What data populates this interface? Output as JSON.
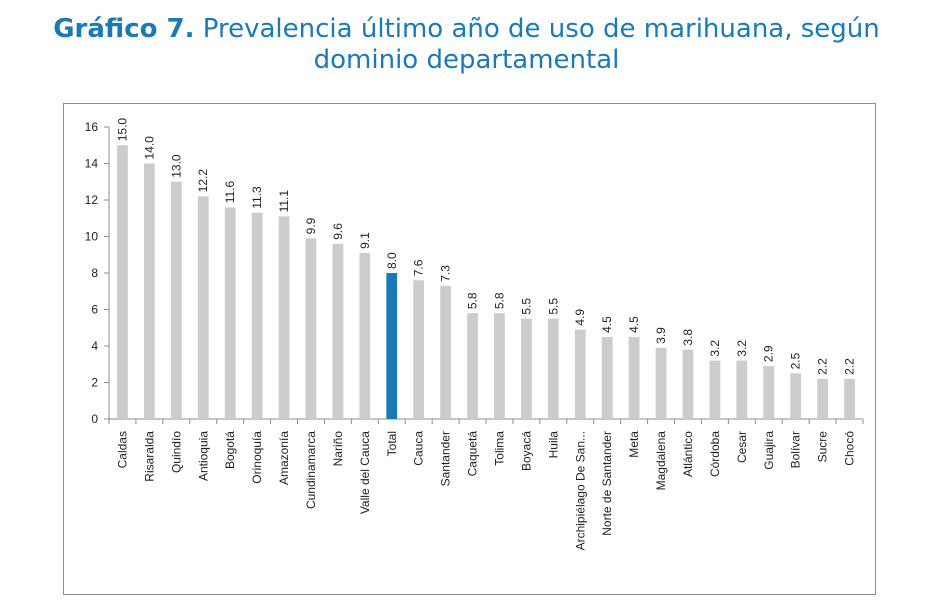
{
  "title": {
    "prefix": "Gráfico 7.",
    "text": " Prevalencia último año de uso de marihuana, según",
    "line2": "dominio departamental"
  },
  "colors": {
    "bar": "#cccccc",
    "highlight": "#1a7ab8",
    "axis": "#8c8c8c"
  },
  "chart_data": {
    "type": "bar",
    "title": "Gráfico 7. Prevalencia último año de uso de marihuana, según dominio departamental",
    "xlabel": "",
    "ylabel": "",
    "ylim": [
      0,
      16
    ],
    "yticks": [
      0,
      2,
      4,
      6,
      8,
      10,
      12,
      14,
      16
    ],
    "grid": false,
    "legend": "none",
    "highlight_category": "Total",
    "categories": [
      "Caldas",
      "Risaralda",
      "Quindío",
      "Antioquia",
      "Bogotá",
      "Orinoquía",
      "Amazonía",
      "Cundinamarca",
      "Nariño",
      "Valle del Cauca",
      "Total",
      "Cauca",
      "Santander",
      "Caquetá",
      "Tolima",
      "Boyacá",
      "Huila",
      "Archipiélago De San...",
      "Norte de Santander",
      "Meta",
      "Magdalena",
      "Atlántico",
      "Córdoba",
      "Cesar",
      "Guajira",
      "Bolívar",
      "Sucre",
      "Chocó"
    ],
    "values": [
      15.0,
      14.0,
      13.0,
      12.2,
      11.6,
      11.3,
      11.1,
      9.9,
      9.6,
      9.1,
      8.0,
      7.6,
      7.3,
      5.8,
      5.8,
      5.5,
      5.5,
      4.9,
      4.5,
      4.5,
      3.9,
      3.8,
      3.2,
      3.2,
      2.9,
      2.5,
      2.2,
      2.2
    ],
    "value_labels": [
      "15.0",
      "14.0",
      "13.0",
      "12.2",
      "11.6",
      "11.3",
      "11.1",
      "9.9",
      "9.6",
      "9.1",
      "8.0",
      "7.6",
      "7.3",
      "5.8",
      "5.8",
      "5.5",
      "5.5",
      "4.9",
      "4.5",
      "4.5",
      "3.9",
      "3.8",
      "3.2",
      "3.2",
      "2.9",
      "2.5",
      "2.2",
      "2.2"
    ]
  }
}
